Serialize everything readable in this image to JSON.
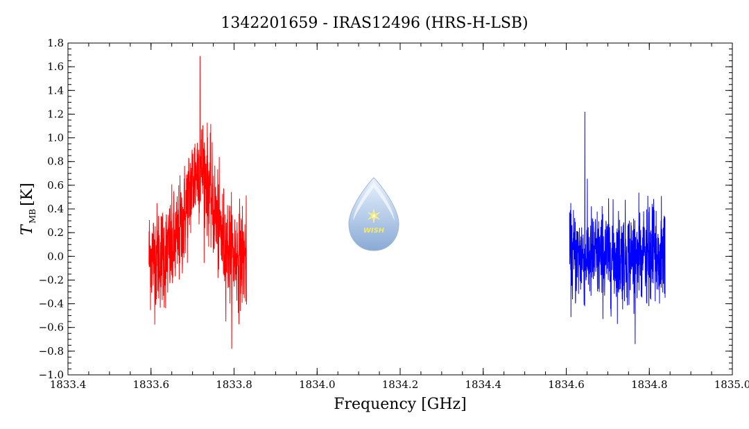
{
  "chart_data": {
    "type": "line",
    "title": "1342201659 - IRAS12496 (HRS-H-LSB)",
    "xlabel": "Frequency [GHz]",
    "ylabel_main": "T",
    "ylabel_sub": "MB",
    "ylabel_unit": "[K]",
    "xlim": [
      1833.4,
      1835.0
    ],
    "ylim": [
      -1.0,
      1.8
    ],
    "xticks": [
      1833.4,
      1833.6,
      1833.8,
      1834.0,
      1834.2,
      1834.4,
      1834.6,
      1834.8,
      1835.0
    ],
    "xtick_labels": [
      "1833.4",
      "1833.6",
      "1833.8",
      "1834.0",
      "1834.2",
      "1834.4",
      "1834.6",
      "1834.8",
      "1835.0"
    ],
    "yticks": [
      -1.0,
      -0.8,
      -0.6,
      -0.4,
      -0.2,
      0.0,
      0.2,
      0.4,
      0.6,
      0.8,
      1.0,
      1.2,
      1.4,
      1.6,
      1.8
    ],
    "ytick_labels": [
      "−1.0",
      "−0.8",
      "−0.6",
      "−0.4",
      "−0.2",
      "0.0",
      "0.2",
      "0.4",
      "0.6",
      "0.8",
      "1.0",
      "1.2",
      "1.4",
      "1.6",
      "1.8"
    ],
    "grid": false,
    "series": [
      {
        "color": "#ff0000",
        "x_range": [
          1833.595,
          1833.83
        ],
        "noise_rms": 0.22,
        "line_peak_x": 1833.718,
        "line_peak_value": 0.75,
        "line_width_ghz": 0.03,
        "max_value": 1.69,
        "min_value": -0.78
      },
      {
        "color": "#0000ff",
        "x_range": [
          1834.608,
          1834.838
        ],
        "noise_rms": 0.2,
        "line_peak_x": null,
        "line_peak_value": 0,
        "line_width_ghz": 0,
        "max_value": 1.22,
        "min_value": -0.74
      }
    ]
  },
  "logo": {
    "text": "WISH",
    "colors": {
      "drop_top": "#e6f0fb",
      "drop_bottom": "#8fb0d8",
      "star": "#ffe85a",
      "text": "#f3e66a"
    }
  }
}
